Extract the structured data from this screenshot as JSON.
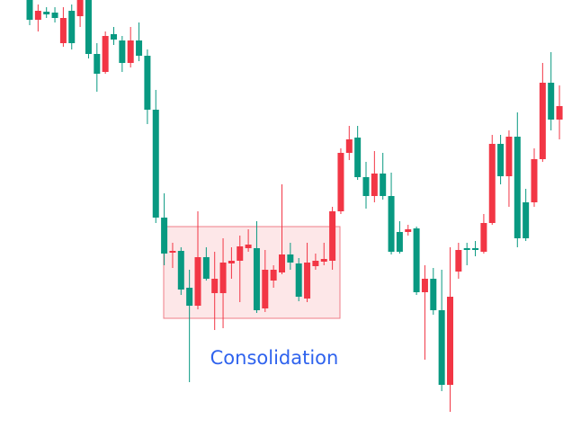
{
  "chart_data": {
    "type": "candlestick",
    "annotation": "Consolidation",
    "up_color": "#f23645",
    "down_color": "#089981",
    "open": [
      486,
      464,
      473,
      472,
      438,
      474,
      468,
      486,
      426,
      406,
      448,
      441,
      416,
      441,
      424,
      364,
      244,
      205,
      207,
      166,
      146,
      200,
      160,
      160,
      193,
      196,
      210,
      210,
      143,
      174,
      183,
      203,
      193,
      154,
      190,
      195,
      196,
      251,
      316,
      333,
      289,
      268,
      293,
      268,
      228,
      228,
      232,
      161,
      176,
      141,
      58,
      184,
      210,
      210,
      206,
      238,
      326,
      290,
      334,
      261,
      261,
      309,
      394,
      353
    ],
    "high": [
      486,
      481,
      478,
      478,
      478,
      481,
      486,
      486,
      438,
      451,
      456,
      446,
      456,
      461,
      431,
      386,
      271,
      216,
      211,
      186,
      251,
      211,
      206,
      221,
      211,
      224,
      231,
      240,
      208,
      191,
      281,
      216,
      199,
      216,
      204,
      216,
      256,
      321,
      346,
      346,
      306,
      318,
      316,
      294,
      240,
      236,
      234,
      191,
      188,
      186,
      211,
      216,
      216,
      218,
      248,
      336,
      336,
      341,
      361,
      276,
      321,
      416,
      428,
      391
    ],
    "low": [
      458,
      451,
      466,
      461,
      434,
      431,
      456,
      421,
      384,
      404,
      436,
      406,
      411,
      418,
      348,
      238,
      191,
      188,
      158,
      61,
      142,
      174,
      119,
      121,
      176,
      150,
      206,
      138,
      139,
      166,
      181,
      186,
      151,
      150,
      186,
      191,
      186,
      248,
      308,
      286,
      254,
      261,
      264,
      203,
      204,
      224,
      158,
      86,
      136,
      51,
      28,
      176,
      191,
      201,
      204,
      236,
      281,
      256,
      211,
      218,
      256,
      306,
      341,
      331
    ],
    "close": [
      464,
      474,
      470,
      466,
      466,
      438,
      486,
      426,
      404,
      446,
      442,
      416,
      441,
      424,
      364,
      244,
      204,
      207,
      164,
      146,
      200,
      176,
      176,
      194,
      196,
      212,
      214,
      141,
      186,
      186,
      203,
      194,
      156,
      194,
      196,
      198,
      251,
      316,
      331,
      289,
      268,
      293,
      268,
      206,
      206,
      231,
      161,
      176,
      141,
      58,
      156,
      208,
      208,
      208,
      238,
      326,
      290,
      334,
      221,
      221,
      309,
      394,
      353,
      368
    ]
  }
}
